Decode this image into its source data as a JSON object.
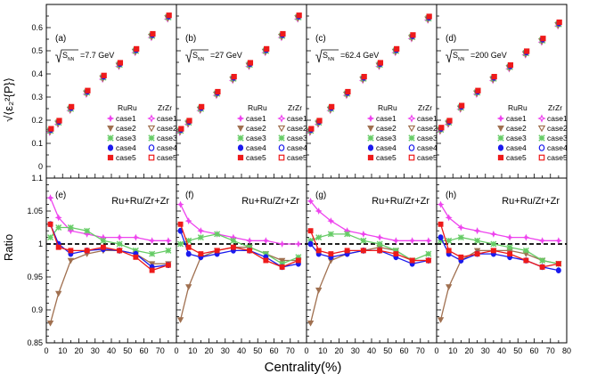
{
  "chart_data": {
    "type": "scatter",
    "figure_xlabel": "Centrality(%)",
    "top_ylabel": "√⟨ε₂²{P}⟩",
    "bottom_ylabel": "Ratio",
    "x_range": [
      0,
      80
    ],
    "top_ylim": [
      -0.05,
      0.7
    ],
    "bottom_ylim": [
      0.85,
      1.1
    ],
    "x_ticks": [
      "0",
      "10",
      "20",
      "30",
      "40",
      "50",
      "60",
      "70",
      "80"
    ],
    "top_yticks": [
      "0",
      "0.1",
      "0.2",
      "0.3",
      "0.4",
      "0.5",
      "0.6"
    ],
    "bottom_yticks": [
      "0.85",
      "0.9",
      "0.95",
      "1",
      "1.05",
      "1.1"
    ],
    "legend": {
      "ru_header": "RuRu",
      "zr_header": "ZrZr",
      "entries": [
        "case1",
        "case2",
        "case3",
        "case4",
        "case5"
      ]
    },
    "colors": {
      "case1": "#ee44ee",
      "case2": "#a07050",
      "case3": "#66cc66",
      "case4": "#1a1aee",
      "case5": "#ee1a1a"
    },
    "panels": [
      {
        "top_label": "(a)",
        "energy": "7.7 GeV",
        "bottom_label": "(e)",
        "ratio_title": "Ru+Ru/Zr+Zr",
        "x": [
          2.5,
          7.5,
          15,
          25,
          35,
          45,
          55,
          65,
          75
        ],
        "top_values": [
          0.155,
          0.19,
          0.25,
          0.32,
          0.385,
          0.44,
          0.5,
          0.565,
          0.645
        ],
        "ratios": {
          "case1": [
            1.07,
            1.04,
            1.02,
            1.015,
            1.01,
            1.01,
            1.01,
            1.005,
            1.005
          ],
          "case2": [
            0.88,
            0.925,
            0.975,
            0.985,
            0.99,
            0.99,
            0.985,
            0.97,
            0.97
          ],
          "case3": [
            1.01,
            1.025,
            1.025,
            1.02,
            1.005,
            1.0,
            0.99,
            0.985,
            0.99
          ],
          "case4": [
            1.03,
            1.0,
            0.985,
            0.99,
            0.992,
            0.99,
            0.985,
            0.965,
            0.968
          ],
          "case5": [
            1.03,
            0.995,
            0.99,
            0.99,
            0.995,
            0.99,
            0.98,
            0.96,
            0.968
          ]
        }
      },
      {
        "top_label": "(b)",
        "energy": "27 GeV",
        "bottom_label": "(f)",
        "ratio_title": "Ru+Ru/Zr+Zr",
        "x": [
          2.5,
          7.5,
          15,
          25,
          35,
          45,
          55,
          65,
          75
        ],
        "top_values": [
          0.155,
          0.19,
          0.25,
          0.315,
          0.38,
          0.44,
          0.5,
          0.565,
          0.645
        ],
        "ratios": {
          "case1": [
            1.06,
            1.035,
            1.02,
            1.015,
            1.01,
            1.005,
            1.005,
            1.0,
            1.0
          ],
          "case2": [
            0.885,
            0.935,
            0.98,
            0.99,
            0.995,
            0.995,
            0.985,
            0.975,
            0.975
          ],
          "case3": [
            1.0,
            1.005,
            1.01,
            1.015,
            1.005,
            0.995,
            0.985,
            0.97,
            0.98
          ],
          "case4": [
            1.02,
            0.985,
            0.98,
            0.985,
            0.99,
            0.99,
            0.98,
            0.965,
            0.97
          ],
          "case5": [
            1.03,
            0.995,
            0.985,
            0.99,
            0.995,
            0.99,
            0.975,
            0.965,
            0.975
          ]
        }
      },
      {
        "top_label": "(c)",
        "energy": "62.4 GeV",
        "bottom_label": "(g)",
        "ratio_title": "Ru+Ru/Zr+Zr",
        "x": [
          2.5,
          7.5,
          15,
          25,
          35,
          45,
          55,
          65,
          75
        ],
        "top_values": [
          0.155,
          0.19,
          0.25,
          0.315,
          0.38,
          0.44,
          0.5,
          0.56,
          0.64
        ],
        "ratios": {
          "case1": [
            1.065,
            1.05,
            1.035,
            1.02,
            1.015,
            1.01,
            1.005,
            1.005,
            1.005
          ],
          "case2": [
            0.88,
            0.93,
            0.975,
            0.985,
            0.99,
            0.995,
            0.99,
            0.975,
            0.975
          ],
          "case3": [
            1.005,
            1.01,
            1.015,
            1.015,
            1.005,
            1.0,
            0.99,
            0.975,
            0.985
          ],
          "case4": [
            1.0,
            0.985,
            0.98,
            0.985,
            0.99,
            0.99,
            0.98,
            0.97,
            0.975
          ],
          "case5": [
            1.02,
            0.99,
            0.985,
            0.99,
            0.99,
            0.99,
            0.985,
            0.975,
            0.975
          ]
        }
      },
      {
        "top_label": "(d)",
        "energy": "200 GeV",
        "bottom_label": "(h)",
        "ratio_title": "Ru+Ru/Zr+Zr",
        "x": [
          2.5,
          7.5,
          15,
          25,
          35,
          45,
          55,
          65,
          75
        ],
        "top_values": [
          0.16,
          0.19,
          0.255,
          0.32,
          0.38,
          0.43,
          0.49,
          0.545,
          0.615
        ],
        "ratios": {
          "case1": [
            1.06,
            1.04,
            1.025,
            1.02,
            1.015,
            1.01,
            1.01,
            1.005,
            1.005
          ],
          "case2": [
            0.885,
            0.935,
            0.975,
            0.99,
            0.99,
            0.99,
            0.985,
            0.975,
            0.97
          ],
          "case3": [
            1.005,
            1.005,
            1.01,
            1.005,
            1.0,
            0.995,
            0.99,
            0.975,
            0.97
          ],
          "case4": [
            1.01,
            0.985,
            0.975,
            0.985,
            0.985,
            0.98,
            0.975,
            0.965,
            0.96
          ],
          "case5": [
            1.03,
            0.99,
            0.98,
            0.985,
            0.99,
            0.985,
            0.975,
            0.965,
            0.97
          ]
        }
      }
    ]
  }
}
